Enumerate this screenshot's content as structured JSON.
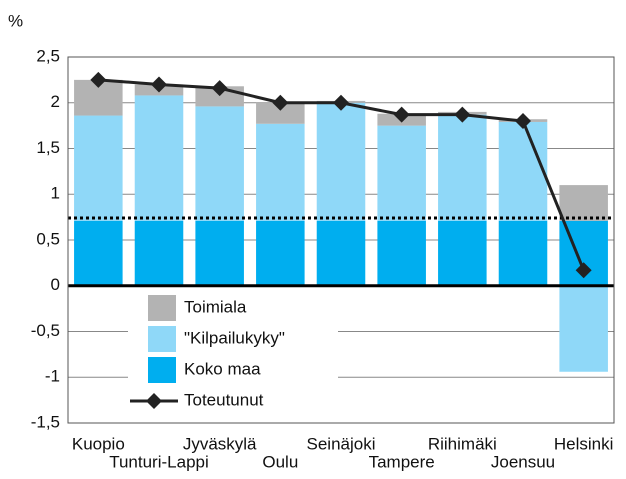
{
  "chart_data": {
    "type": "bar",
    "y_label": "%",
    "categories": [
      "Kuopio",
      "Tunturi-Lappi",
      "Jyväskylä",
      "Oulu",
      "Seinäjoki",
      "Tampere",
      "Riihimäki",
      "Joensuu",
      "Helsinki"
    ],
    "series": [
      {
        "name": "Koko maa",
        "color": "#00aeef",
        "values": [
          0.71,
          0.71,
          0.71,
          0.71,
          0.71,
          0.71,
          0.71,
          0.71,
          0.71
        ]
      },
      {
        "name": "\"Kilpailukyky\"",
        "color": "#8fd8f8",
        "values": [
          1.15,
          1.37,
          1.25,
          1.06,
          1.29,
          1.04,
          1.16,
          1.08,
          -0.94
        ]
      },
      {
        "name": "Toimiala",
        "color": "#b3b3b3",
        "values": [
          0.39,
          0.12,
          0.22,
          0.23,
          0.02,
          0.13,
          0.03,
          0.03,
          0.39
        ]
      },
      {
        "name": "Toteutunut",
        "color": "#222222",
        "type": "line",
        "values": [
          2.25,
          2.2,
          2.16,
          2.0,
          2.0,
          1.87,
          1.87,
          1.8,
          0.17
        ]
      }
    ],
    "reference_line": 0.74,
    "ylim": [
      -1.5,
      2.5
    ],
    "yticks": [
      {
        "value": -1.5,
        "label": "-1,5"
      },
      -1,
      {
        "value": -0.5,
        "label": "-0,5"
      },
      0,
      {
        "value": 0.5,
        "label": "0,5"
      },
      1,
      {
        "value": 1.5,
        "label": "1,5"
      },
      2,
      {
        "value": 2.5,
        "label": "2,5"
      }
    ],
    "grid": true
  }
}
